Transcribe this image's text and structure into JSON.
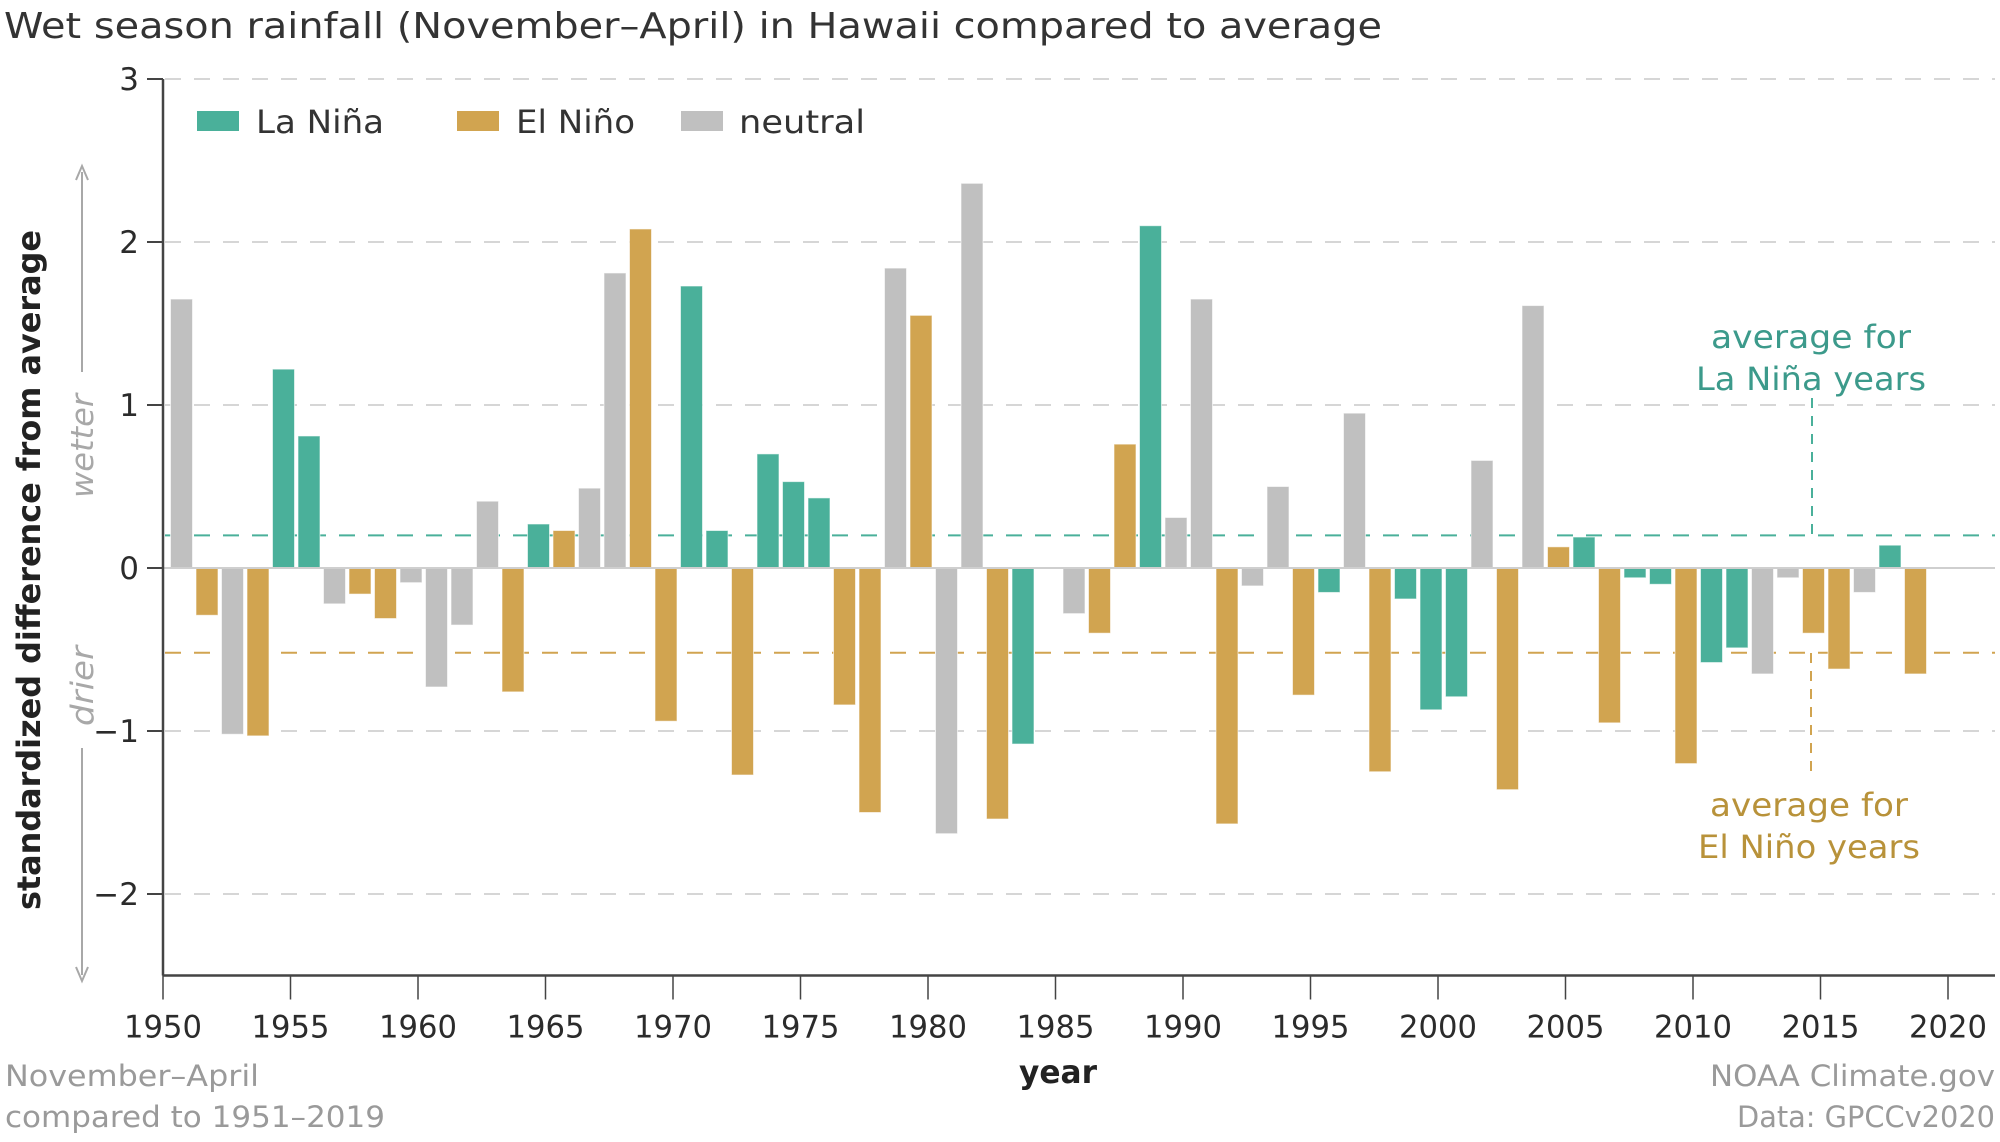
{
  "chart_data": {
    "type": "bar",
    "title": "Wet season rainfall (November–April) in Hawaii compared to average",
    "xlabel": "year",
    "ylabel": "standardized difference from average",
    "xlim": [
      1950,
      2022
    ],
    "ylim": [
      -2.5,
      3
    ],
    "x_ticks": [
      1950,
      1955,
      1960,
      1965,
      1970,
      1975,
      1980,
      1985,
      1990,
      1995,
      2000,
      2005,
      2010,
      2015,
      2020
    ],
    "y_ticks": [
      3,
      2,
      1,
      0,
      -1,
      -2
    ],
    "y_tick_labels": [
      "3",
      "2",
      "1",
      "0",
      "−1",
      "−2"
    ],
    "grid": "horizontal dashed",
    "legend": {
      "placement": "top-left",
      "items": [
        {
          "key": "lanina",
          "label": "La Niña",
          "color": "#4AB09A"
        },
        {
          "key": "elnino",
          "label": "El Niño",
          "color": "#D1A450"
        },
        {
          "key": "neutral",
          "label": "neutral",
          "color": "#C0C0C0"
        }
      ]
    },
    "colors": {
      "lanina": "#4AB09A",
      "elnino": "#D1A450",
      "neutral": "#C0C0C0",
      "lanina_text": "#3C9A8B",
      "elnino_text": "#B8923A"
    },
    "series": [
      {
        "year": 1951,
        "phase": "neutral",
        "value": 1.65
      },
      {
        "year": 1952,
        "phase": "elnino",
        "value": -0.29
      },
      {
        "year": 1953,
        "phase": "neutral",
        "value": -1.02
      },
      {
        "year": 1954,
        "phase": "elnino",
        "value": -1.03
      },
      {
        "year": 1955,
        "phase": "lanina",
        "value": 1.22
      },
      {
        "year": 1956,
        "phase": "lanina",
        "value": 0.81
      },
      {
        "year": 1957,
        "phase": "neutral",
        "value": -0.22
      },
      {
        "year": 1958,
        "phase": "elnino",
        "value": -0.16
      },
      {
        "year": 1959,
        "phase": "elnino",
        "value": -0.31
      },
      {
        "year": 1960,
        "phase": "neutral",
        "value": -0.09
      },
      {
        "year": 1961,
        "phase": "neutral",
        "value": -0.73
      },
      {
        "year": 1962,
        "phase": "neutral",
        "value": -0.35
      },
      {
        "year": 1963,
        "phase": "neutral",
        "value": 0.41
      },
      {
        "year": 1964,
        "phase": "elnino",
        "value": -0.76
      },
      {
        "year": 1965,
        "phase": "lanina",
        "value": 0.27
      },
      {
        "year": 1966,
        "phase": "elnino",
        "value": 0.23
      },
      {
        "year": 1967,
        "phase": "neutral",
        "value": 0.49
      },
      {
        "year": 1968,
        "phase": "neutral",
        "value": 1.81
      },
      {
        "year": 1969,
        "phase": "elnino",
        "value": 2.08
      },
      {
        "year": 1970,
        "phase": "elnino",
        "value": -0.94
      },
      {
        "year": 1971,
        "phase": "lanina",
        "value": 1.73
      },
      {
        "year": 1972,
        "phase": "lanina",
        "value": 0.23
      },
      {
        "year": 1973,
        "phase": "elnino",
        "value": -1.27
      },
      {
        "year": 1974,
        "phase": "lanina",
        "value": 0.7
      },
      {
        "year": 1975,
        "phase": "lanina",
        "value": 0.53
      },
      {
        "year": 1976,
        "phase": "lanina",
        "value": 0.43
      },
      {
        "year": 1977,
        "phase": "elnino",
        "value": -0.84
      },
      {
        "year": 1978,
        "phase": "elnino",
        "value": -1.5
      },
      {
        "year": 1979,
        "phase": "neutral",
        "value": 1.84
      },
      {
        "year": 1980,
        "phase": "elnino",
        "value": 1.55
      },
      {
        "year": 1981,
        "phase": "neutral",
        "value": -1.63
      },
      {
        "year": 1982,
        "phase": "neutral",
        "value": 2.36
      },
      {
        "year": 1983,
        "phase": "elnino",
        "value": -1.54
      },
      {
        "year": 1984,
        "phase": "lanina",
        "value": -1.08
      },
      {
        "year": 1985,
        "phase": "neutral",
        "value": 0.0
      },
      {
        "year": 1986,
        "phase": "neutral",
        "value": -0.28
      },
      {
        "year": 1987,
        "phase": "elnino",
        "value": -0.4
      },
      {
        "year": 1988,
        "phase": "elnino",
        "value": 0.76
      },
      {
        "year": 1989,
        "phase": "lanina",
        "value": 2.1
      },
      {
        "year": 1990,
        "phase": "neutral",
        "value": 0.31
      },
      {
        "year": 1991,
        "phase": "neutral",
        "value": 1.65
      },
      {
        "year": 1992,
        "phase": "elnino",
        "value": -1.57
      },
      {
        "year": 1993,
        "phase": "neutral",
        "value": -0.11
      },
      {
        "year": 1994,
        "phase": "neutral",
        "value": 0.5
      },
      {
        "year": 1995,
        "phase": "elnino",
        "value": -0.78
      },
      {
        "year": 1996,
        "phase": "lanina",
        "value": -0.15
      },
      {
        "year": 1997,
        "phase": "neutral",
        "value": 0.95
      },
      {
        "year": 1998,
        "phase": "elnino",
        "value": -1.25
      },
      {
        "year": 1999,
        "phase": "lanina",
        "value": -0.19
      },
      {
        "year": 2000,
        "phase": "lanina",
        "value": -0.87
      },
      {
        "year": 2001,
        "phase": "lanina",
        "value": -0.79
      },
      {
        "year": 2002,
        "phase": "neutral",
        "value": 0.66
      },
      {
        "year": 2003,
        "phase": "elnino",
        "value": -1.36
      },
      {
        "year": 2004,
        "phase": "neutral",
        "value": 1.61
      },
      {
        "year": 2005,
        "phase": "elnino",
        "value": 0.13
      },
      {
        "year": 2006,
        "phase": "lanina",
        "value": 0.19
      },
      {
        "year": 2007,
        "phase": "elnino",
        "value": -0.95
      },
      {
        "year": 2008,
        "phase": "lanina",
        "value": -0.06
      },
      {
        "year": 2009,
        "phase": "lanina",
        "value": -0.1
      },
      {
        "year": 2010,
        "phase": "elnino",
        "value": -1.2
      },
      {
        "year": 2011,
        "phase": "lanina",
        "value": -0.58
      },
      {
        "year": 2012,
        "phase": "lanina",
        "value": -0.49
      },
      {
        "year": 2013,
        "phase": "neutral",
        "value": -0.65
      },
      {
        "year": 2014,
        "phase": "neutral",
        "value": -0.06
      },
      {
        "year": 2015,
        "phase": "elnino",
        "value": -0.4
      },
      {
        "year": 2016,
        "phase": "elnino",
        "value": -0.62
      },
      {
        "year": 2017,
        "phase": "neutral",
        "value": -0.15
      },
      {
        "year": 2018,
        "phase": "lanina",
        "value": 0.14
      },
      {
        "year": 2019,
        "phase": "elnino",
        "value": -0.65
      }
    ],
    "reference_lines": [
      {
        "key": "lanina",
        "label_line1": "average for",
        "label_line2": "La Niña years",
        "value": 0.2
      },
      {
        "key": "elnino",
        "label_line1": "average for",
        "label_line2": "El Niño years",
        "value": -0.52
      }
    ],
    "direction_labels": {
      "up": "wetter",
      "down": "drier"
    },
    "annotations": {
      "bottom_left_line1": "November–April",
      "bottom_left_line2": "compared to 1951–2019",
      "bottom_right_line1": "NOAA Climate.gov",
      "bottom_right_line2": "Data: GPCCv2020"
    }
  }
}
